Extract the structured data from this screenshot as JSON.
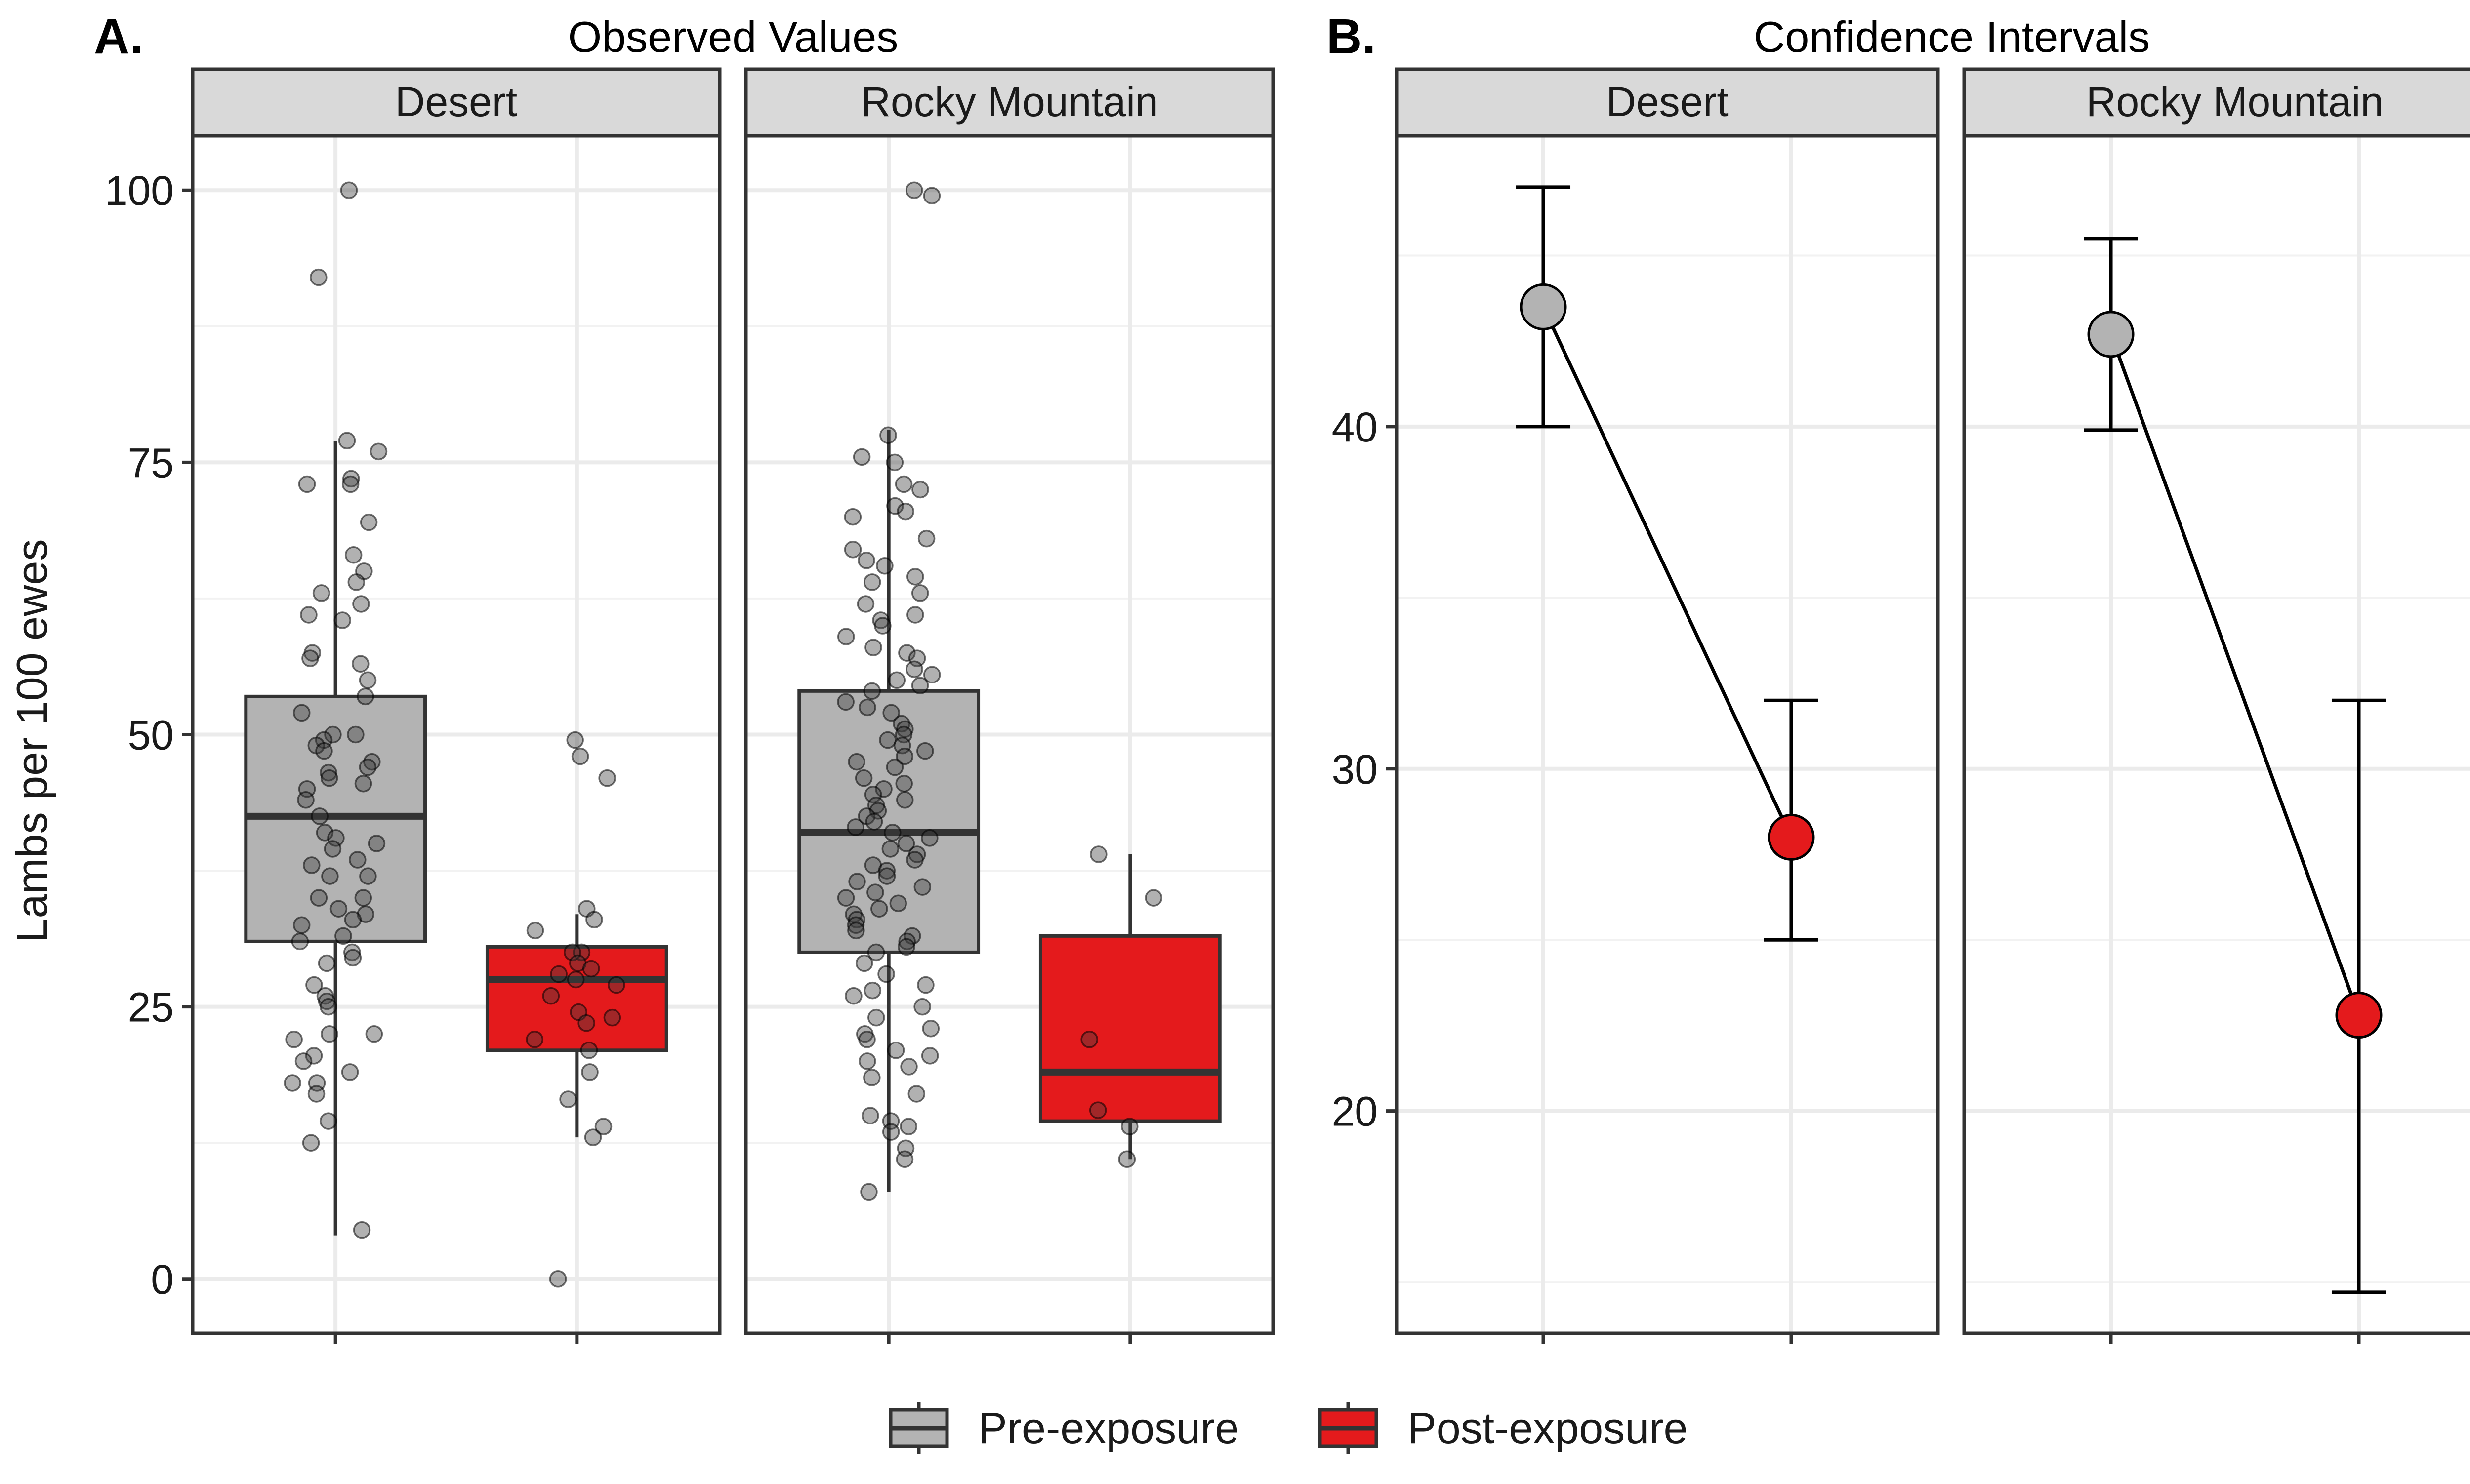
{
  "figure": {
    "panel_a_tag": "A.",
    "panel_b_tag": "B.",
    "panel_a_title": "Observed Values",
    "panel_b_title": "Confidence Intervals",
    "ylabel": "Lambs per 100 ewes"
  },
  "legend": {
    "items": [
      {
        "label": "Pre-exposure",
        "color": "#b3b3b3"
      },
      {
        "label": "Post-exposure",
        "color": "#e41a1c"
      }
    ]
  },
  "colors": {
    "pre": "#b3b3b3",
    "post": "#e41a1c",
    "strip_bg": "#d9d9d9",
    "grid": "#ebebeb"
  },
  "chart_data": [
    {
      "type": "box",
      "title": "Observed Values",
      "ylabel": "Lambs per 100 ewes",
      "ylim": [
        -5,
        105
      ],
      "yticks": [
        0,
        25,
        50,
        75,
        100
      ],
      "facets": [
        {
          "name": "Desert",
          "groups": [
            {
              "name": "Pre-exposure",
              "whisker_low": 4,
              "q1": 31,
              "median": 42.5,
              "q3": 53.5,
              "whisker_high": 77,
              "points": [
                100,
                92,
                77,
                76,
                73.5,
                73,
                73,
                69.5,
                66.5,
                65,
                64,
                63,
                62,
                61,
                60.5,
                57.5,
                57,
                56.5,
                55,
                53.5,
                52,
                50,
                50,
                49.5,
                49,
                48.5,
                47.5,
                47,
                46.5,
                46,
                45.5,
                45,
                44,
                42.5,
                41,
                40.5,
                40,
                39.5,
                38.5,
                38,
                37,
                37,
                35,
                35,
                34,
                33.5,
                33,
                32.5,
                31.5,
                31,
                30,
                29,
                29.5,
                27,
                26,
                25.5,
                25,
                22.5,
                22.5,
                22,
                20.5,
                20,
                19,
                18,
                18,
                17,
                14.5,
                12.5,
                4.5
              ]
            },
            {
              "name": "Post-exposure",
              "whisker_low": 13,
              "q1": 21,
              "median": 27.5,
              "q3": 30.5,
              "whisker_high": 33.5,
              "points": [
                49.5,
                48,
                46,
                34,
                33,
                32,
                30,
                30,
                29,
                28.5,
                28,
                27.5,
                27,
                26,
                24.5,
                24,
                23.5,
                22,
                21,
                19,
                16.5,
                14,
                13,
                0
              ]
            }
          ]
        },
        {
          "name": "Rocky Mountain",
          "groups": [
            {
              "name": "Pre-exposure",
              "whisker_low": 8,
              "q1": 30,
              "median": 41,
              "q3": 54,
              "whisker_high": 78,
              "points": [
                100,
                99.5,
                77.5,
                75.5,
                75,
                73,
                72.5,
                71,
                70.5,
                70,
                68,
                67,
                66,
                65.5,
                64.5,
                64,
                63,
                62,
                61,
                60.5,
                60,
                59,
                58,
                57.5,
                57,
                56,
                55.5,
                55,
                54.5,
                54,
                53,
                52.5,
                52,
                51,
                50.5,
                50,
                49.5,
                49,
                48.5,
                48,
                47.5,
                47,
                46,
                45.5,
                45,
                44.5,
                44,
                43.5,
                43,
                42.5,
                42,
                41.5,
                41,
                40.5,
                40,
                39.5,
                39,
                38.5,
                38,
                37.5,
                37,
                36.5,
                36,
                35.5,
                35,
                34.5,
                34,
                33.5,
                33,
                32.5,
                32,
                31.5,
                31,
                30.5,
                30,
                29,
                28,
                27,
                26.5,
                26,
                25,
                24,
                23,
                22.5,
                22,
                21,
                20.5,
                20,
                19.5,
                18.5,
                17,
                15,
                14.5,
                14,
                13.5,
                12,
                11,
                8
              ]
            },
            {
              "name": "Post-exposure",
              "whisker_low": 11,
              "q1": 14.5,
              "median": 19,
              "q3": 31.5,
              "whisker_high": 39,
              "points": [
                39,
                35,
                22,
                15.5,
                14,
                11
              ]
            }
          ]
        }
      ]
    },
    {
      "type": "errorbar",
      "title": "Confidence Intervals",
      "ylim": [
        13.5,
        48.5
      ],
      "yticks": [
        20,
        30,
        40
      ],
      "facets": [
        {
          "name": "Desert",
          "points": [
            {
              "group": "Pre-exposure",
              "estimate": 43.5,
              "lower": 40,
              "upper": 47
            },
            {
              "group": "Post-exposure",
              "estimate": 28,
              "lower": 25,
              "upper": 32
            }
          ]
        },
        {
          "name": "Rocky Mountain",
          "points": [
            {
              "group": "Pre-exposure",
              "estimate": 42.7,
              "lower": 39.9,
              "upper": 45.5
            },
            {
              "group": "Post-exposure",
              "estimate": 22.8,
              "lower": 14.7,
              "upper": 32
            }
          ]
        }
      ]
    }
  ]
}
